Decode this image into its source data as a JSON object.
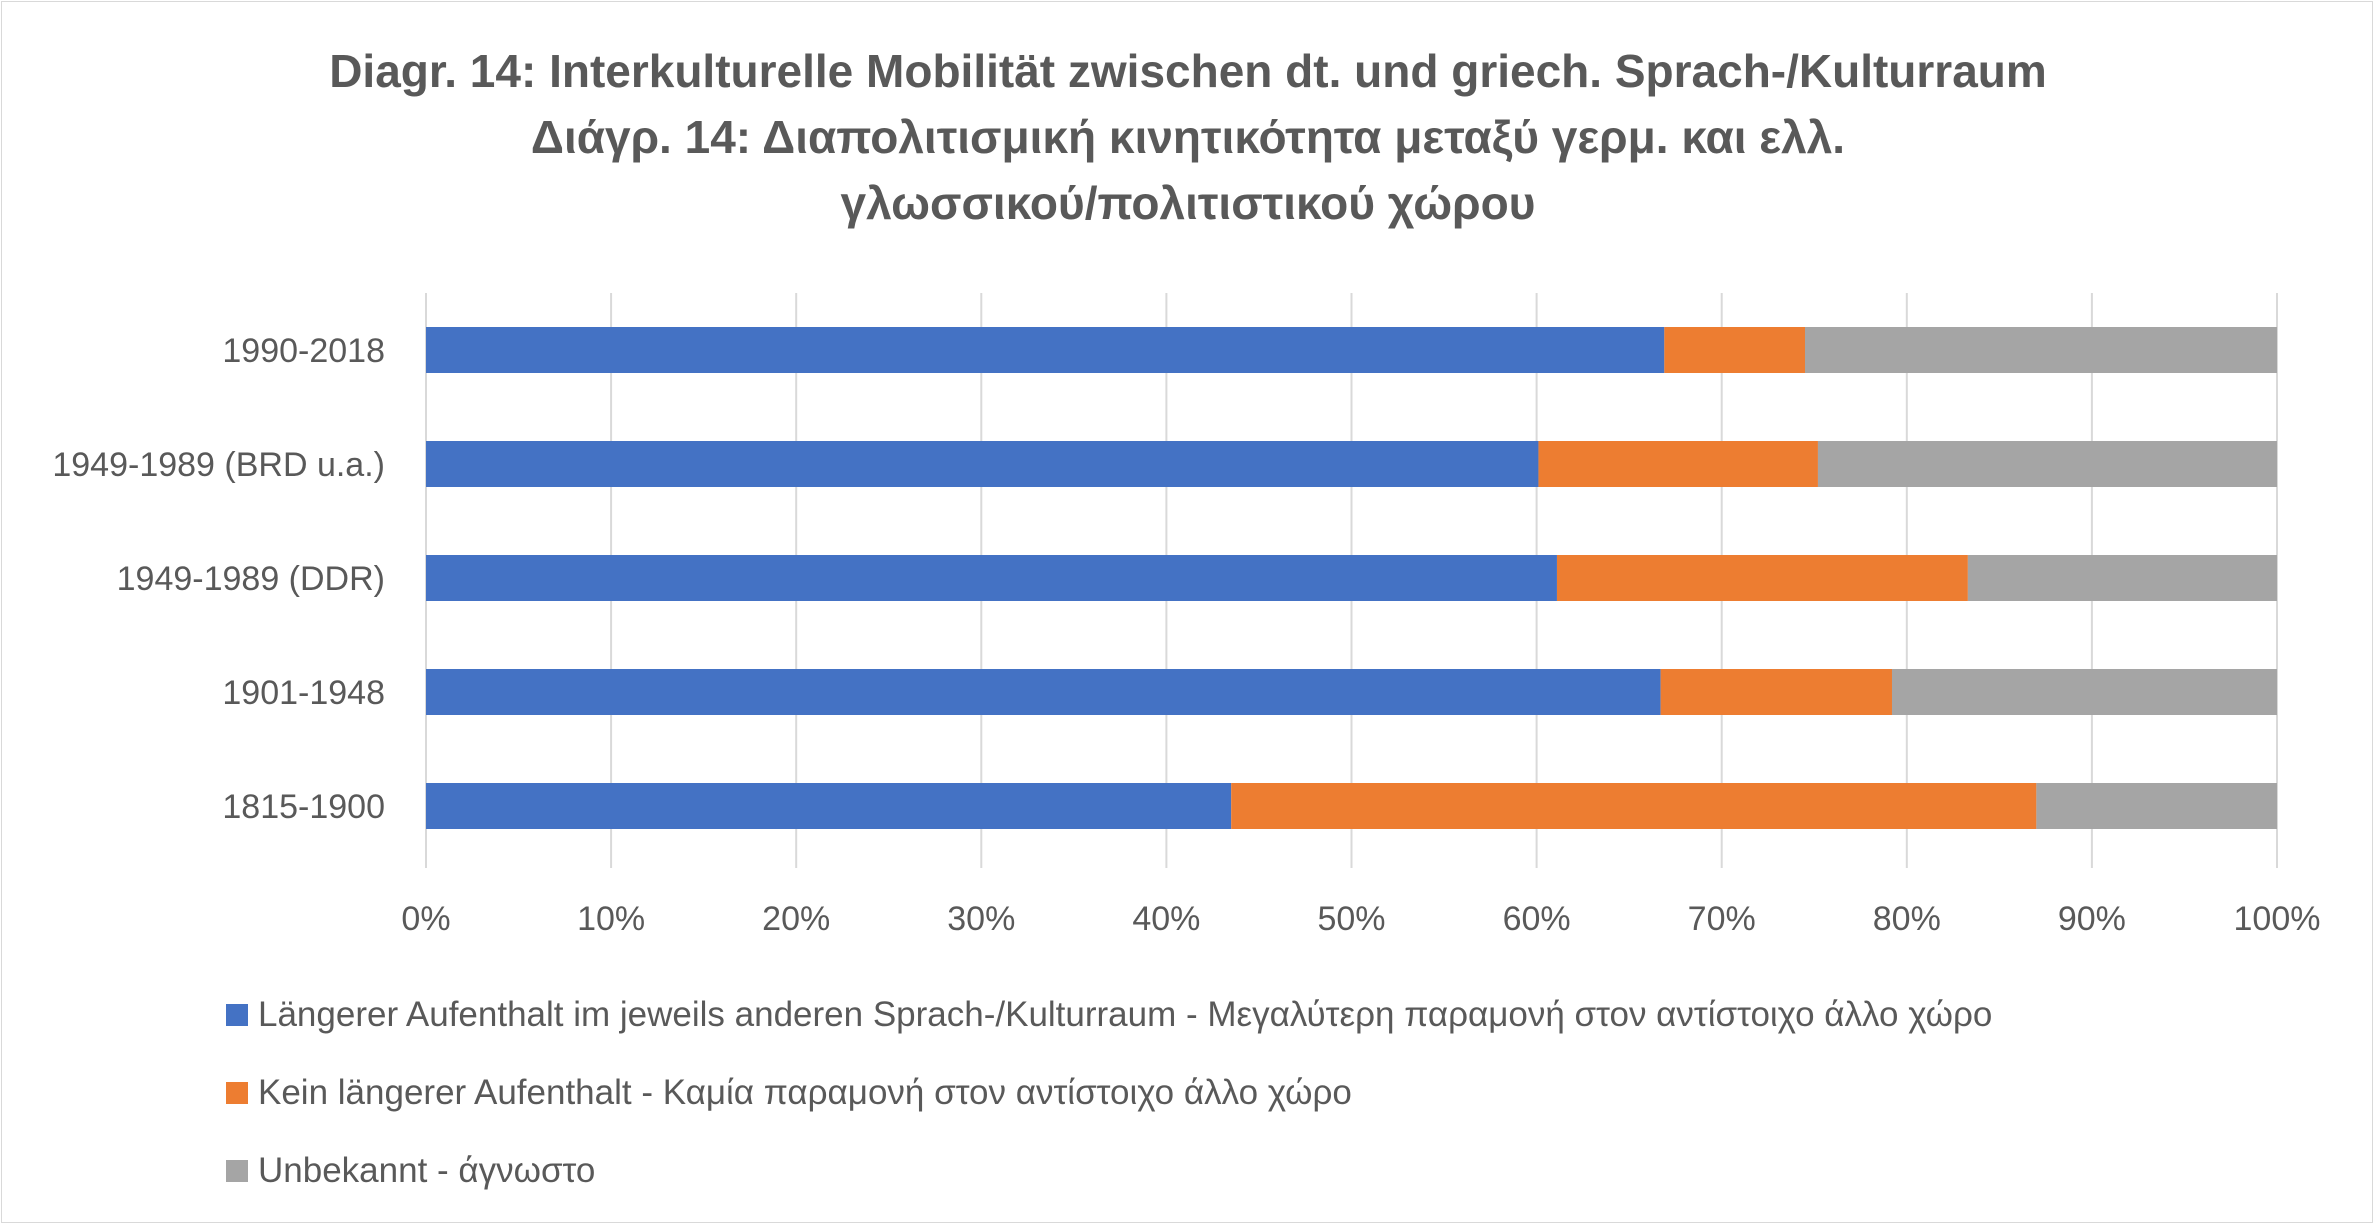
{
  "chart_data": {
    "type": "bar",
    "orientation": "horizontal",
    "stacked": "percent",
    "title": [
      "Diagr. 14: Interkulturelle Mobilität zwischen dt. und griech. Sprach-/Kulturraum",
      "Διάγρ. 14: Διαπολιτισμική κινητικότητα μεταξύ γερμ. και ελλ.",
      "γλωσσικού/πολιτιστικού χώρου"
    ],
    "categories": [
      "1990-2018",
      "1949-1989 (BRD u.a.)",
      "1949-1989 (DDR)",
      "1901-1948",
      "1815-1900"
    ],
    "series": [
      {
        "name": "Längerer Aufenthalt im jeweils anderen Sprach-/Kulturraum - Μεγαλύτερη παραμονή στον αντίστοιχο άλλο χώρο",
        "color": "#4472c4",
        "values": [
          66.9,
          60.1,
          61.1,
          66.7,
          43.5
        ]
      },
      {
        "name": "Kein längerer Aufenthalt - Καμία παραμονή στον αντίστοιχο άλλο χώρο",
        "color": "#ed7d31",
        "values": [
          7.6,
          15.1,
          22.2,
          12.5,
          43.5
        ]
      },
      {
        "name": "Unbekannt - άγνωστο",
        "color": "#a5a5a5",
        "values": [
          25.5,
          24.8,
          16.7,
          20.8,
          13.0
        ]
      }
    ],
    "xlim": [
      0,
      100
    ],
    "xticks": [
      "0%",
      "10%",
      "20%",
      "30%",
      "40%",
      "50%",
      "60%",
      "70%",
      "80%",
      "90%",
      "100%"
    ],
    "grid": "vertical",
    "legend": "bottom-left"
  }
}
